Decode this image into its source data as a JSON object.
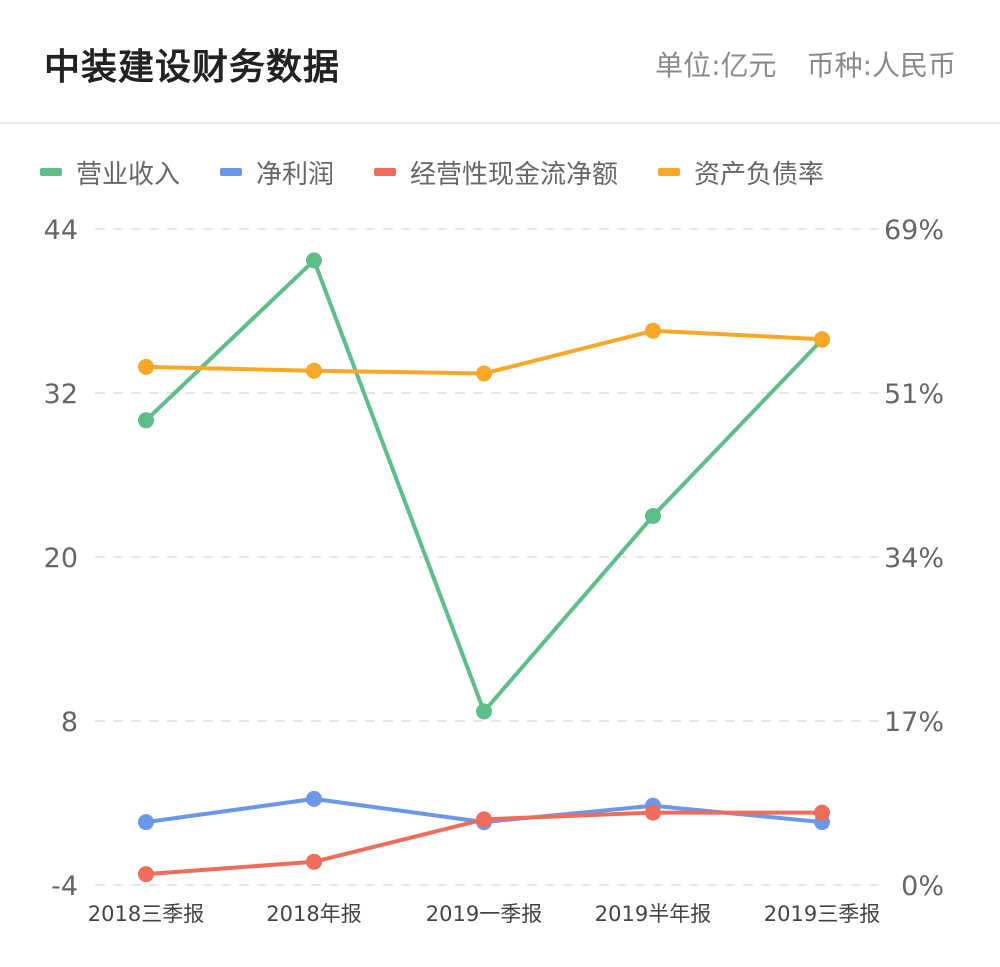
{
  "header": {
    "title": "中装建设财务数据",
    "unit": "单位:亿元",
    "currency": "币种:人民币"
  },
  "chart_data": {
    "type": "line",
    "categories": [
      "2018三季报",
      "2018年报",
      "2019一季报",
      "2019半年报",
      "2019三季报"
    ],
    "left_axis": {
      "ticks": [
        "44",
        "32",
        "20",
        "8",
        "-4"
      ],
      "range": [
        -4,
        44
      ]
    },
    "right_axis": {
      "ticks": [
        "69%",
        "51%",
        "34%",
        "17%",
        "0%"
      ],
      "range": [
        0,
        69
      ]
    },
    "grid": true,
    "legend_position": "top-left",
    "series": [
      {
        "name": "营业收入",
        "color": "#5dbe8a",
        "axis": "left",
        "values": [
          30.0,
          41.7,
          8.7,
          23.0,
          35.9
        ]
      },
      {
        "name": "净利润",
        "color": "#6b97e8",
        "axis": "left",
        "values": [
          0.6,
          2.3,
          0.6,
          1.8,
          0.6
        ]
      },
      {
        "name": "经营性现金流净额",
        "color": "#ef6c5b",
        "axis": "left",
        "values": [
          -3.2,
          -2.3,
          0.8,
          1.3,
          1.3
        ]
      },
      {
        "name": "资产负债率",
        "color": "#f7a826",
        "axis": "right",
        "values": [
          54.5,
          54.1,
          53.8,
          58.3,
          57.4
        ]
      }
    ]
  }
}
